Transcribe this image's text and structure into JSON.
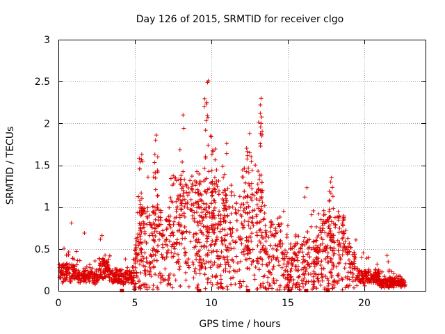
{
  "chart_data": {
    "type": "scatter",
    "title": "Day 126 of 2015, SRMTID for receiver clgo",
    "xlabel": "GPS time / hours",
    "ylabel": "SRMTID / TECUs",
    "xlim": [
      0,
      24
    ],
    "ylim": [
      0,
      3
    ],
    "x_ticks": [
      0,
      5,
      10,
      15,
      20
    ],
    "y_ticks": [
      0,
      0.5,
      1,
      1.5,
      2,
      2.5,
      3
    ],
    "x_tick_labels": [
      "0",
      "5",
      "10",
      "15",
      "20"
    ],
    "y_tick_labels": [
      "0",
      "0.5",
      "1",
      "1.5",
      "2",
      "2.5",
      "3"
    ],
    "grid": true,
    "marker": "plus",
    "color": "#dd0000",
    "outliers": [
      {
        "x": 0.85,
        "y": 0.81
      },
      {
        "x": 1.7,
        "y": 0.69
      },
      {
        "x": 2.85,
        "y": 0.66
      },
      {
        "x": 5.45,
        "y": 1.63
      },
      {
        "x": 6.4,
        "y": 1.86
      },
      {
        "x": 6.35,
        "y": 1.8
      },
      {
        "x": 8.15,
        "y": 2.1
      },
      {
        "x": 8.2,
        "y": 1.94
      },
      {
        "x": 9.8,
        "y": 2.51
      },
      {
        "x": 9.75,
        "y": 2.49
      },
      {
        "x": 9.7,
        "y": 2.25
      },
      {
        "x": 9.95,
        "y": 1.85
      },
      {
        "x": 10.0,
        "y": 1.84
      },
      {
        "x": 11.0,
        "y": 1.76
      },
      {
        "x": 11.0,
        "y": 1.64
      },
      {
        "x": 12.5,
        "y": 1.88
      },
      {
        "x": 12.5,
        "y": 1.65
      },
      {
        "x": 13.25,
        "y": 2.3
      },
      {
        "x": 13.2,
        "y": 2.22
      },
      {
        "x": 13.2,
        "y": 2.12
      },
      {
        "x": 13.25,
        "y": 2.0
      },
      {
        "x": 13.3,
        "y": 1.85
      },
      {
        "x": 16.1,
        "y": 1.12
      },
      {
        "x": 17.85,
        "y": 1.35
      },
      {
        "x": 17.8,
        "y": 1.3
      }
    ],
    "zero_markers_x": [
      4.15,
      9.2,
      12.4,
      15.1,
      16.2,
      17.6
    ]
  }
}
